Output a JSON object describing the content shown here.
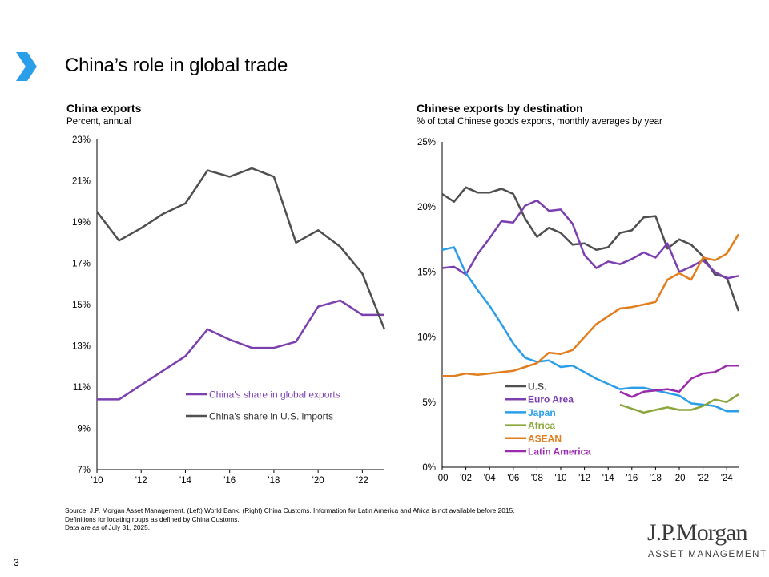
{
  "header": {
    "title": "China’s role in global trade",
    "page_number": "3"
  },
  "footer": {
    "lines": [
      "Source: J.P. Morgan Asset Management. (Left) World Bank. (Right) China Customs. Information for Latin America and Africa is not available before 2015.",
      "Definitions for locating roups as defined by China Customs.",
      "Data are as of July 31, 2025."
    ],
    "logo_main": "J.P.Morgan",
    "logo_sub": "ASSET MANAGEMENT"
  },
  "colors": {
    "gray": "#4f4f4f",
    "purple": "#7b3fb0",
    "blue": "#2a9ee8",
    "green": "#8aa63c",
    "orange": "#e07f20",
    "magenta": "#9a2bad",
    "accent": "#2a9ee8"
  },
  "chart_data": [
    {
      "type": "line",
      "title": "China exports",
      "subtitle": "Percent, annual",
      "xlabel": "",
      "ylabel": "",
      "ylim": [
        7,
        23
      ],
      "yticks": [
        7,
        9,
        11,
        13,
        15,
        17,
        19,
        21,
        23
      ],
      "ytick_labels": [
        "7%",
        "9%",
        "11%",
        "13%",
        "15%",
        "17%",
        "19%",
        "21%",
        "23%"
      ],
      "xlim": [
        2010,
        2023
      ],
      "xticks": [
        2010,
        2012,
        2014,
        2016,
        2018,
        2020,
        2022
      ],
      "xtick_labels": [
        "'10",
        "'12",
        "'14",
        "'16",
        "'18",
        "'20",
        "'22"
      ],
      "x": [
        2010,
        2011,
        2012,
        2013,
        2014,
        2015,
        2016,
        2017,
        2018,
        2019,
        2020,
        2021,
        2022,
        2023
      ],
      "series": [
        {
          "name": "China's share in global exports",
          "color": "purple",
          "values": [
            10.4,
            10.4,
            11.1,
            11.8,
            12.5,
            13.8,
            13.3,
            12.9,
            12.9,
            13.2,
            14.9,
            15.2,
            14.5,
            14.5
          ]
        },
        {
          "name": "China's share in U.S. imports",
          "color": "gray",
          "values": [
            19.5,
            18.1,
            18.7,
            19.4,
            19.9,
            21.5,
            21.2,
            21.6,
            21.2,
            18.0,
            18.6,
            17.8,
            16.5,
            13.8
          ]
        }
      ],
      "legend": "lower-right"
    },
    {
      "type": "line",
      "title": "Chinese exports by destination",
      "subtitle": "% of total Chinese goods exports, monthly averages by year",
      "xlabel": "",
      "ylabel": "",
      "ylim": [
        0,
        25
      ],
      "yticks": [
        0,
        5,
        10,
        15,
        20,
        25
      ],
      "ytick_labels": [
        "0%",
        "5%",
        "10%",
        "15%",
        "20%",
        "25%"
      ],
      "xlim": [
        2000,
        2025
      ],
      "xticks": [
        2000,
        2002,
        2004,
        2006,
        2008,
        2010,
        2012,
        2014,
        2016,
        2018,
        2020,
        2022,
        2024
      ],
      "xtick_labels": [
        "'00",
        "'02",
        "'04",
        "'06",
        "'08",
        "'10",
        "'12",
        "'14",
        "'16",
        "'18",
        "'20",
        "'22",
        "'24"
      ],
      "series": [
        {
          "name": "U.S.",
          "color": "gray",
          "x_start": 2000,
          "values": [
            21.0,
            20.4,
            21.5,
            21.1,
            21.1,
            21.4,
            21.0,
            19.1,
            17.7,
            18.4,
            18.0,
            17.1,
            17.2,
            16.7,
            16.9,
            18.0,
            18.2,
            19.2,
            19.3,
            16.8,
            17.5,
            17.1,
            16.2,
            14.8,
            14.6,
            12.0
          ]
        },
        {
          "name": "Euro Area",
          "color": "purple",
          "x_start": 2000,
          "values": [
            15.3,
            15.4,
            14.8,
            16.4,
            17.6,
            18.9,
            18.8,
            20.1,
            20.5,
            19.7,
            19.8,
            18.7,
            16.3,
            15.3,
            15.8,
            15.6,
            16.0,
            16.5,
            16.1,
            17.2,
            15.0,
            15.4,
            15.9,
            15.0,
            14.5,
            14.7
          ]
        },
        {
          "name": "Japan",
          "color": "blue",
          "x_start": 2000,
          "values": [
            16.7,
            16.9,
            14.9,
            13.6,
            12.4,
            11.0,
            9.5,
            8.4,
            8.1,
            8.2,
            7.7,
            7.8,
            7.3,
            6.8,
            6.4,
            6.0,
            6.1,
            6.1,
            5.9,
            5.7,
            5.5,
            4.9,
            4.8,
            4.7,
            4.3,
            4.3
          ]
        },
        {
          "name": "Africa",
          "color": "green",
          "x_start": 2015,
          "values": [
            4.8,
            4.5,
            4.2,
            4.4,
            4.6,
            4.4,
            4.4,
            4.7,
            5.2,
            5.0,
            5.6
          ]
        },
        {
          "name": "ASEAN",
          "color": "orange",
          "x_start": 2000,
          "values": [
            7.0,
            7.0,
            7.2,
            7.1,
            7.2,
            7.3,
            7.4,
            7.7,
            8.0,
            8.8,
            8.7,
            9.0,
            10.0,
            11.0,
            11.6,
            12.2,
            12.3,
            12.5,
            12.7,
            14.4,
            14.9,
            14.4,
            16.1,
            15.9,
            16.4,
            17.9
          ]
        },
        {
          "name": "Latin America",
          "color": "magenta",
          "x_start": 2015,
          "values": [
            5.8,
            5.4,
            5.8,
            5.9,
            6.0,
            5.8,
            6.8,
            7.2,
            7.3,
            7.8,
            7.8
          ]
        }
      ],
      "legend": "lower-center"
    }
  ]
}
